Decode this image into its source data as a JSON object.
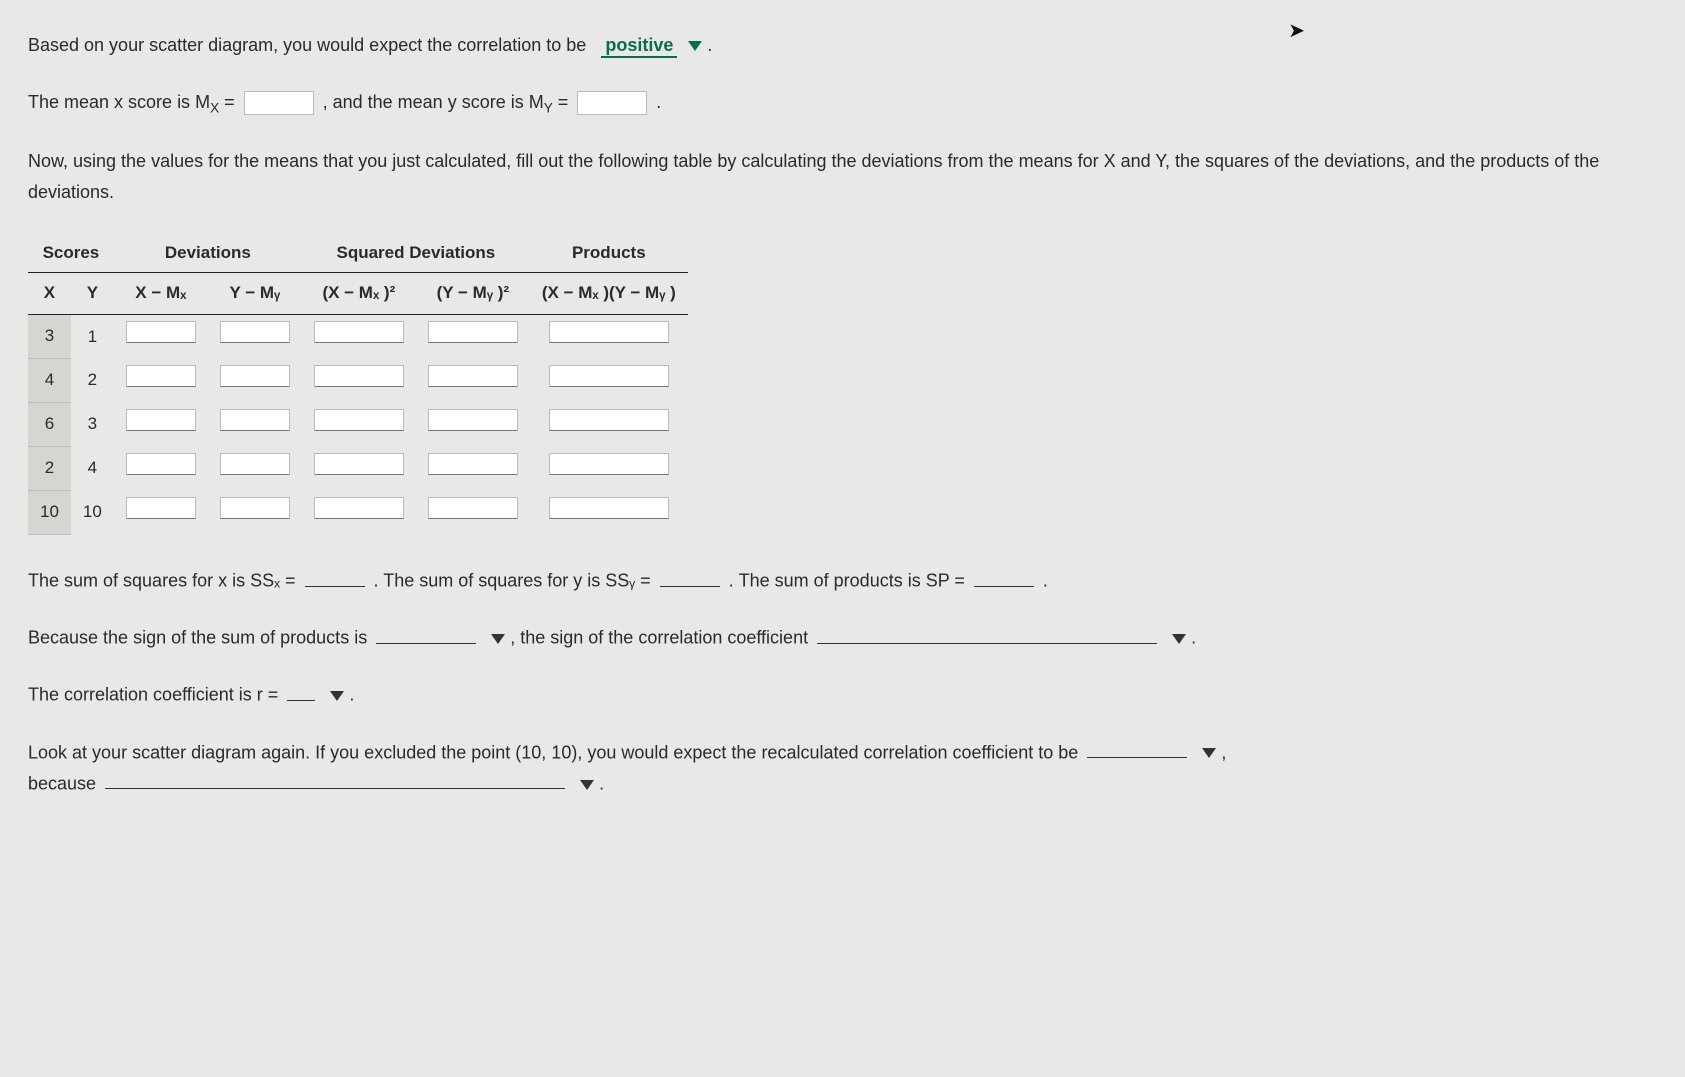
{
  "cursor_visible": true,
  "q1": {
    "prefix": "Based on your scatter diagram, you would expect the correlation to be",
    "dropdown_value": "positive",
    "suffix": "."
  },
  "means": {
    "text_a": "The mean x score is M",
    "sub_x": "X",
    "eq": " = ",
    "text_b": ", and the mean y score is M",
    "sub_y": "Y",
    "eq2": " = ",
    "suffix": "."
  },
  "instruction": "Now, using the values for the means that you just calculated, fill out the following table by calculating the deviations from the means for X and Y, the squares of the deviations, and the products of the deviations.",
  "table": {
    "groups": [
      "Scores",
      "Deviations",
      "Squared Deviations",
      "Products"
    ],
    "headers": {
      "x": "X",
      "y": "Y",
      "xdev": "X − Mₓ",
      "ydev": "Y − Mᵧ",
      "xdev2": "(X − Mₓ )²",
      "ydev2": "(Y − Mᵧ )²",
      "prod": "(X − Mₓ )(Y − Mᵧ )"
    },
    "rows": [
      {
        "x": "3",
        "y": "1"
      },
      {
        "x": "4",
        "y": "2"
      },
      {
        "x": "6",
        "y": "3"
      },
      {
        "x": "2",
        "y": "4"
      },
      {
        "x": "10",
        "y": "10"
      }
    ]
  },
  "sums": {
    "ssx_label": "The sum of squares for x is SSₓ = ",
    "ssy_label": ". The sum of squares for y is SSᵧ = ",
    "sp_label": ". The sum of products is SP = ",
    "suffix": "."
  },
  "sign_line": {
    "a": "Because the sign of the sum of products is ",
    "b": ", the sign of the correlation coefficient ",
    "suffix": "."
  },
  "r_line": {
    "a": "The correlation coefficient is r = ",
    "suffix": "."
  },
  "last": {
    "a": "Look at your scatter diagram again. If you excluded the point (10, 10), you would expect the recalculated correlation coefficient to be ",
    "b": "because ",
    "suffix": ",",
    "suffix2": "."
  },
  "colors": {
    "bg": "#e8e8e6",
    "text": "#2a2a2a",
    "accent": "#0b6e4a",
    "shade": "#d5d5d2",
    "border": "#bbbbbb"
  }
}
